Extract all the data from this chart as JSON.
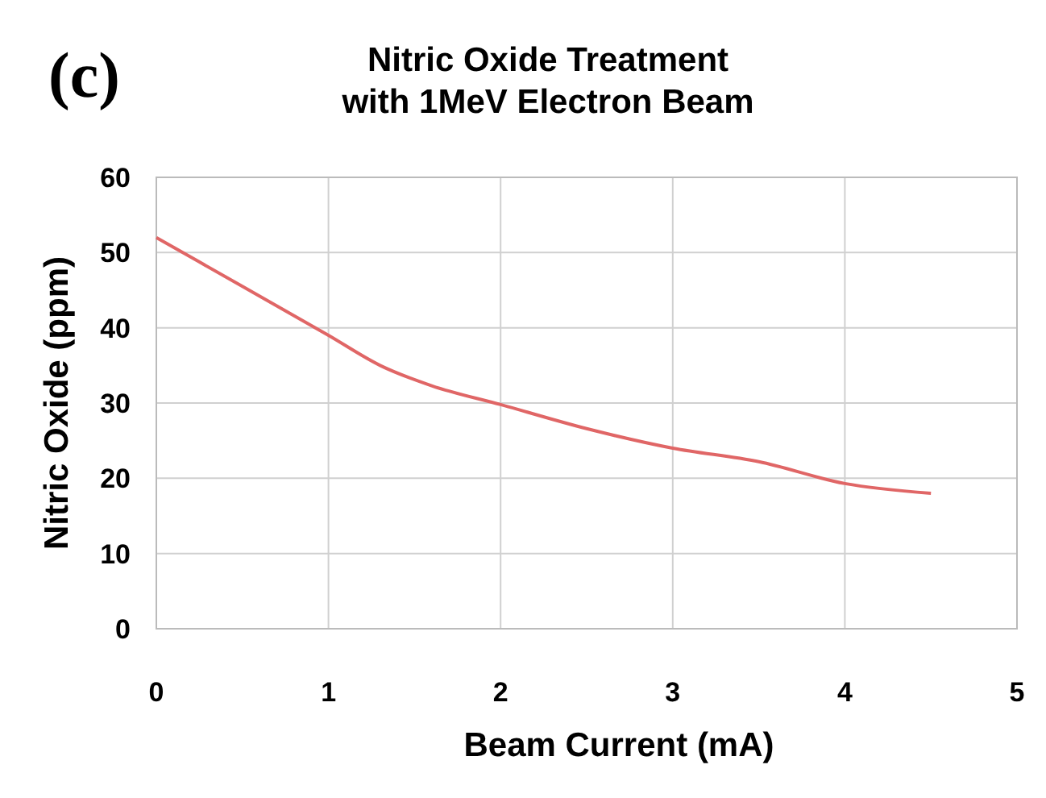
{
  "chart_data": {
    "type": "line",
    "title": "Nitric Oxide Treatment\nwith 1MeV Electron Beam",
    "xlabel": "Beam Current (mA)",
    "ylabel": "Nitric Oxide (ppm)",
    "annotations": [
      "(c)"
    ],
    "x": [
      0,
      0.5,
      1,
      1.3,
      1.6,
      2,
      2.5,
      3,
      3.5,
      4,
      4.5
    ],
    "series": [
      {
        "color": "#e06666",
        "values": [
          52,
          45.5,
          39,
          35,
          32.3,
          29.8,
          26.6,
          24,
          22.2,
          19.3,
          18
        ]
      }
    ],
    "xlim": [
      0,
      5
    ],
    "xticks": [
      0,
      1,
      2,
      3,
      4,
      5
    ],
    "ylim": [
      0,
      60
    ],
    "yticks": [
      0,
      10,
      20,
      30,
      40,
      50,
      60
    ],
    "grid": true,
    "marker": "none",
    "line_style": "solid"
  }
}
